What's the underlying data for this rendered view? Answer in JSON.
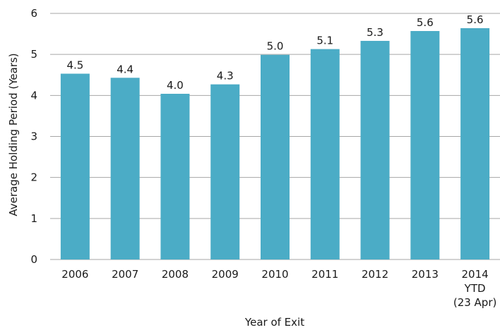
{
  "chart_data": {
    "type": "bar",
    "title": "",
    "xlabel": "Year of Exit",
    "ylabel": "Average Holding Period (Years)",
    "categories": [
      [
        "2006"
      ],
      [
        "2007"
      ],
      [
        "2008"
      ],
      [
        "2009"
      ],
      [
        "2010"
      ],
      [
        "2011"
      ],
      [
        "2012"
      ],
      [
        "2013"
      ],
      [
        "2014",
        "YTD",
        "(23 Apr)"
      ]
    ],
    "values": [
      4.5,
      4.4,
      4.0,
      4.3,
      5.0,
      5.1,
      5.3,
      5.6,
      5.6
    ],
    "value_labels": [
      "4.5",
      "4.4",
      "4.0",
      "4.3",
      "5.0",
      "5.1",
      "5.3",
      "5.6",
      "5.6"
    ],
    "bar_heights": [
      4.53,
      4.43,
      4.04,
      4.27,
      4.99,
      5.13,
      5.33,
      5.57,
      5.64
    ],
    "ylim": [
      0,
      6
    ],
    "yticks": [
      0,
      1,
      2,
      3,
      4,
      5,
      6
    ],
    "grid": true,
    "legend": false,
    "colors": {
      "bar": "#4bacc6",
      "grid": "#a6a6a6"
    }
  }
}
